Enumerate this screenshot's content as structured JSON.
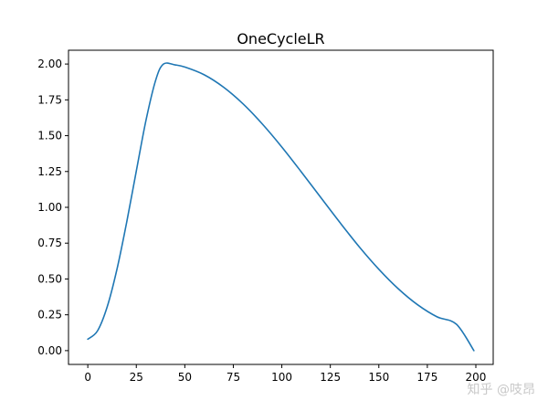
{
  "chart_data": {
    "type": "line",
    "title": "OneCycleLR",
    "xlim": [
      -9.95,
      208.95
    ],
    "ylim": [
      -0.0963,
      2.0963
    ],
    "x_ticks": [
      0,
      25,
      50,
      75,
      100,
      125,
      150,
      175,
      200
    ],
    "y_ticks": [
      0.0,
      0.25,
      0.5,
      0.75,
      1.0,
      1.25,
      1.5,
      1.75,
      2.0
    ],
    "y_tick_labels": [
      "0.00",
      "0.25",
      "0.50",
      "0.75",
      "1.00",
      "1.25",
      "1.50",
      "1.75",
      "2.00"
    ],
    "grid": false,
    "line_color": "#1f77b4",
    "series": [
      {
        "x": [
          0,
          5,
          10,
          15,
          20,
          25,
          30,
          35,
          39,
          45,
          50,
          60,
          70,
          80,
          90,
          100,
          110,
          120,
          130,
          140,
          150,
          160,
          170,
          180,
          190,
          199
        ],
        "values": [
          0.08,
          0.138,
          0.306,
          0.566,
          0.893,
          1.253,
          1.608,
          1.888,
          2.0,
          1.994,
          1.979,
          1.925,
          1.838,
          1.722,
          1.581,
          1.421,
          1.248,
          1.07,
          0.893,
          0.723,
          0.568,
          0.432,
          0.32,
          0.236,
          0.184,
          0.0
        ]
      }
    ]
  },
  "watermark": "知乎 @吱昂"
}
